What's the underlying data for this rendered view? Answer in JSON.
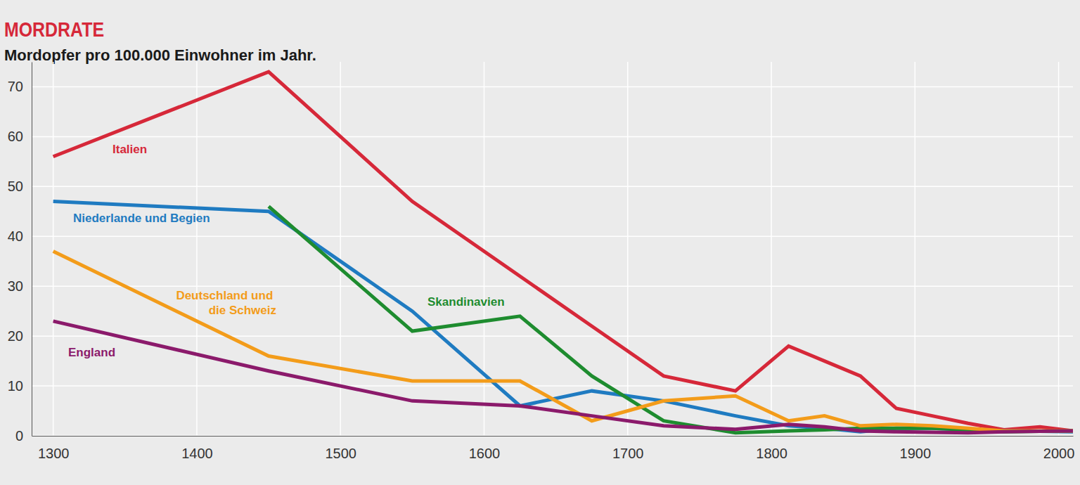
{
  "chart_data": {
    "type": "line",
    "title": "MORDRATE",
    "subtitle": "Mordopfer pro 100.000 Einwohner im Jahr.",
    "x": [
      1300,
      1450,
      1550,
      1625,
      1675,
      1725,
      1775,
      1812,
      1837,
      1862,
      1887,
      1912,
      1937,
      1962,
      1987,
      2010
    ],
    "series": [
      {
        "name": "Italien",
        "color": "#d62839",
        "values": [
          56,
          73,
          47,
          32,
          22,
          12,
          9,
          18,
          15,
          12,
          5.5,
          4,
          2.5,
          1.2,
          1.8,
          1
        ]
      },
      {
        "name": "Niederlande und Begien",
        "color": "#1f7bc1",
        "values": [
          47,
          45,
          25,
          6,
          9,
          7,
          4,
          2,
          1.5,
          0.8,
          1.5,
          1.5,
          1.2,
          1,
          0.9,
          0.8
        ]
      },
      {
        "name": "Skandinavien",
        "color": "#1e8c2f",
        "values": [
          null,
          46,
          21,
          24,
          12,
          3,
          0.6,
          1,
          1.2,
          1.5,
          1.5,
          1.5,
          1.2,
          0.8,
          0.9,
          1
        ]
      },
      {
        "name": "Deutschland und die Schweiz",
        "color": "#f39c1a",
        "values": [
          37,
          16,
          11,
          11,
          3,
          7,
          8,
          3,
          4,
          2,
          2.3,
          2,
          1.5,
          1,
          1,
          1
        ]
      },
      {
        "name": "England",
        "color": "#8b1a6b",
        "values": [
          23,
          13,
          7,
          6,
          4,
          2,
          1.3,
          2.3,
          1.8,
          1,
          0.8,
          0.7,
          0.6,
          0.8,
          0.9,
          1
        ]
      }
    ],
    "xlim": [
      1285,
      2010
    ],
    "xticks": [
      1300,
      1400,
      1500,
      1600,
      1700,
      1800,
      1900,
      2000
    ],
    "ylim": [
      0,
      75
    ],
    "yticks": [
      0,
      10,
      20,
      30,
      40,
      50,
      60,
      70
    ],
    "grid": true
  }
}
